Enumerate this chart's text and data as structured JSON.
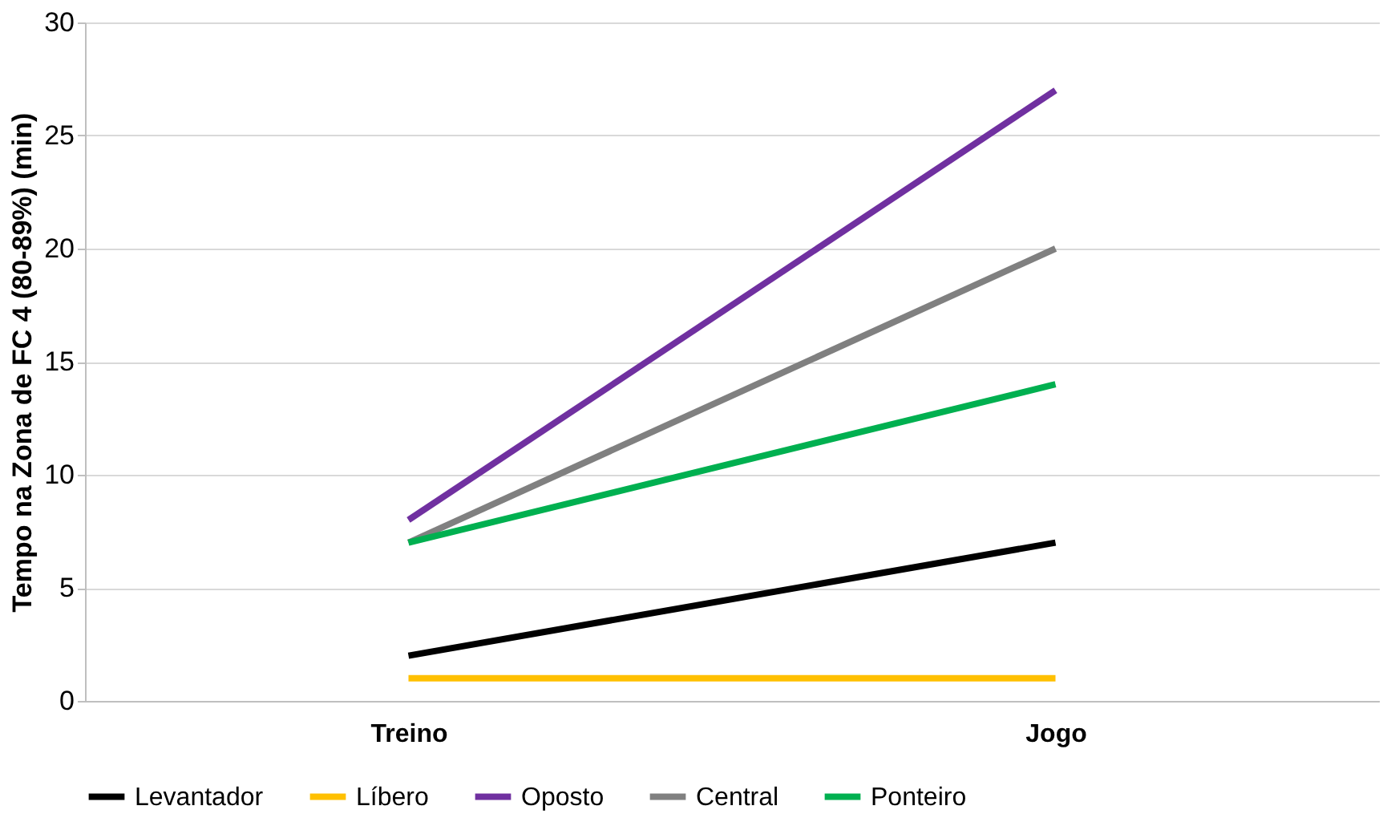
{
  "chart_data": {
    "type": "line",
    "ylabel": "Tempo na Zona de FC 4 (80-89%) (min)",
    "categories": [
      "Treino",
      "Jogo"
    ],
    "series": [
      {
        "name": "Levantador",
        "color": "#000000",
        "values": [
          2,
          7
        ]
      },
      {
        "name": "Líbero",
        "color": "#ffc000",
        "values": [
          1,
          1
        ]
      },
      {
        "name": "Oposto",
        "color": "#7030a0",
        "values": [
          8,
          27
        ]
      },
      {
        "name": "Central",
        "color": "#808080",
        "values": [
          7,
          20
        ]
      },
      {
        "name": "Ponteiro",
        "color": "#00b050",
        "values": [
          7,
          14
        ]
      }
    ],
    "ylim": [
      0,
      30
    ],
    "yticks": [
      0,
      5,
      10,
      15,
      20,
      25,
      30
    ],
    "grid": "y",
    "legend": "bottom",
    "marker": "none",
    "line_style": "solid"
  }
}
